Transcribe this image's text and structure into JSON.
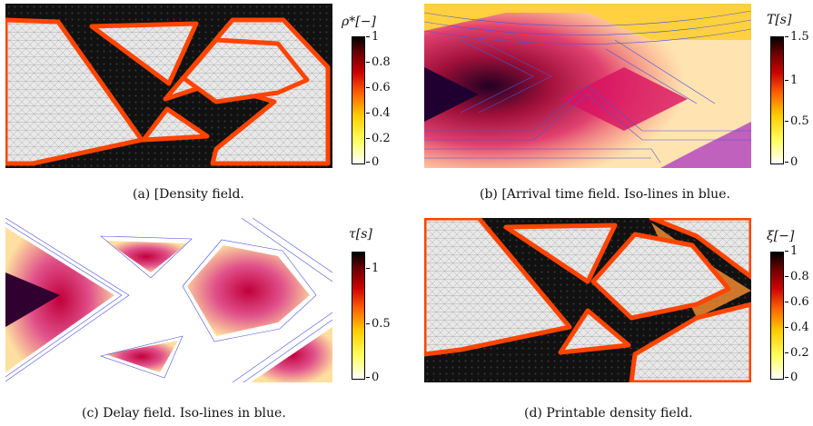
{
  "figure": {
    "panels": [
      {
        "key": "a",
        "caption": "(a) [Density field.",
        "colorbar": {
          "title": "ρ*[−]",
          "ticks": [
            "1",
            "0.8",
            "0.6",
            "0.4",
            "0.2",
            "0"
          ]
        }
      },
      {
        "key": "b",
        "caption": "(b) [Arrival time field. Iso-lines in blue.",
        "colorbar": {
          "title": "T[s]",
          "ticks": [
            "1.5",
            "1",
            "0.5",
            "0"
          ]
        }
      },
      {
        "key": "c",
        "caption": "(c) Delay field. Iso-lines in blue.",
        "colorbar": {
          "title": "τ[s]",
          "ticks": [
            "1",
            "0.5",
            "0"
          ]
        }
      },
      {
        "key": "d",
        "caption": "(d) Printable density field.",
        "colorbar": {
          "title": "ξ[−]",
          "ticks": [
            "1",
            "0.8",
            "0.6",
            "0.4",
            "0.2",
            "0"
          ]
        }
      }
    ],
    "colormap": [
      "#ffffff",
      "#ffff60",
      "#ffcc00",
      "#ff6600",
      "#cc0000",
      "#660000",
      "#000000"
    ],
    "isoline_color": "#4b55d6"
  }
}
